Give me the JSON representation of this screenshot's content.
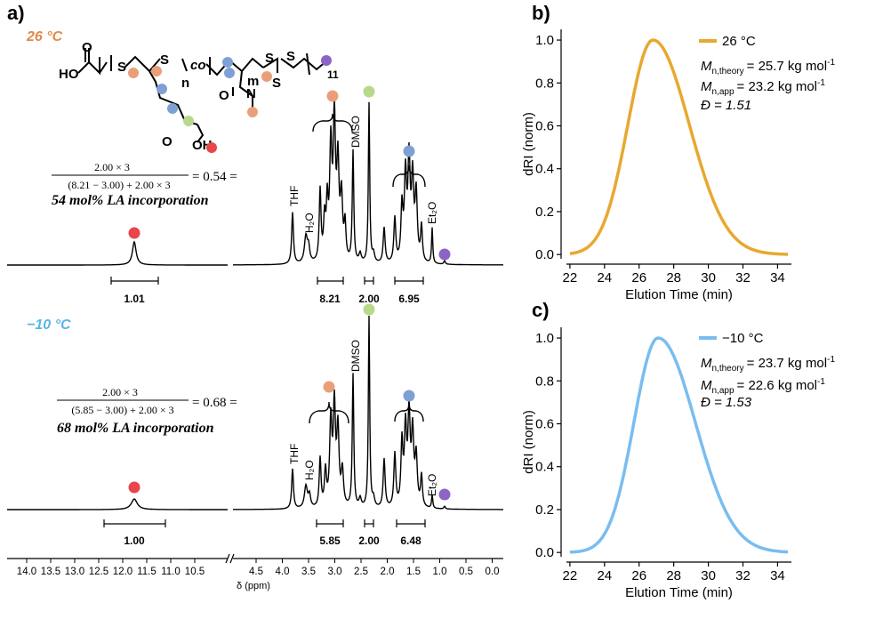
{
  "panels": {
    "a": {
      "label": "a)",
      "spectra": [
        {
          "temperature": "26 °C",
          "temp_color": "#e08a4a",
          "equation_numerator": "2.00 × 3",
          "equation_denominator": "(8.21 − 3.00) + 2.00 × 3",
          "equation_result": "= 0.54 =",
          "result_text": "54 mol% LA incorporation",
          "annotations": [
            "THF",
            "H₂O",
            "DMSO",
            "Et₂O"
          ],
          "integrals": [
            "1.01",
            "8.21",
            "2.00",
            "6.95"
          ]
        },
        {
          "temperature": "−10 °C",
          "temp_color": "#5bb4ea",
          "equation_numerator": "2.00 × 3",
          "equation_denominator": "(5.85 − 3.00) + 2.00 × 3",
          "equation_result": "= 0.68 =",
          "result_text": "68 mol% LA incorporation",
          "annotations": [
            "THF",
            "H₂O",
            "DMSO",
            "Et₂O"
          ],
          "integrals": [
            "1.00",
            "5.85",
            "2.00",
            "6.48"
          ]
        }
      ],
      "axis": {
        "title": "δ (ppm)",
        "ticks_left": [
          14.0,
          13.5,
          13.0,
          12.5,
          12.0,
          11.5,
          11.0,
          10.5
        ],
        "ticks_right": [
          4.5,
          4.0,
          3.5,
          3.0,
          2.5,
          2.0,
          1.5,
          1.0,
          0.5,
          0.0
        ]
      },
      "structure": {
        "labels": [
          "HO",
          "O",
          "S",
          "S",
          "n",
          "co",
          "m",
          "O",
          "N",
          "S",
          "S",
          "S",
          "11",
          "O",
          "OH"
        ],
        "dot_colors": {
          "red": "#e8464b",
          "orange": "#e9a07a",
          "blue": "#7fa0d4",
          "green": "#b7d98a",
          "purple": "#8e63c6"
        }
      },
      "peak_dots": [
        "red",
        "orange",
        "green",
        "blue",
        "purple"
      ]
    },
    "b": {
      "label": "b)",
      "legend": "26 °C",
      "line1": "= 25.7 kg mol",
      "line2": "= 23.2 kg mol",
      "line3": "Đ = 1.51",
      "color": "#e8a830"
    },
    "c": {
      "label": "c)",
      "legend": "−10 °C",
      "line1": "=  23.7 kg mol",
      "line2": "= 22.6 kg mol",
      "line3": "Đ = 1.53",
      "color": "#79bdf0"
    }
  },
  "chart_data": [
    {
      "type": "line",
      "title": "b) SEC trace 26 °C",
      "xlabel": "Elution Time (min)",
      "ylabel": "dRI (norm)",
      "xlim": [
        21.8,
        34.8
      ],
      "ylim": [
        -0.02,
        1.05
      ],
      "xticks": [
        22,
        24,
        26,
        28,
        30,
        32,
        34
      ],
      "yticks": [
        0.0,
        0.2,
        0.4,
        0.6,
        0.8,
        1.0
      ],
      "series": [
        {
          "name": "26 °C",
          "peak": 26.8,
          "sigma_left": 1.45,
          "sigma_right": 2.1,
          "start": 22.0,
          "end": 34.6
        }
      ]
    },
    {
      "type": "line",
      "title": "c) SEC trace −10 °C",
      "xlabel": "Elution Time (min)",
      "ylabel": "dRI (norm)",
      "xlim": [
        21.8,
        34.8
      ],
      "ylim": [
        -0.02,
        1.05
      ],
      "xticks": [
        22,
        24,
        26,
        28,
        30,
        32,
        34
      ],
      "yticks": [
        0.0,
        0.2,
        0.4,
        0.6,
        0.8,
        1.0
      ],
      "series": [
        {
          "name": "−10 °C",
          "peak": 27.1,
          "sigma_left": 1.4,
          "sigma_right": 2.15,
          "start": 22.0,
          "end": 34.6
        }
      ]
    }
  ]
}
